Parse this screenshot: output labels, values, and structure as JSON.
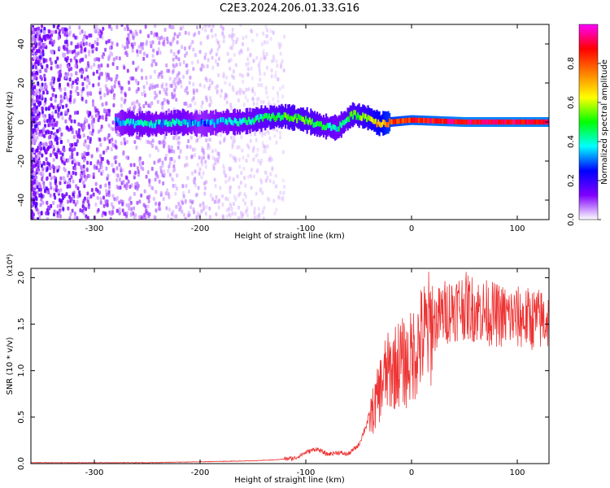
{
  "title": "C2E3.2024.206.01.33.G16",
  "chart_data": [
    {
      "type": "heatmap",
      "xlabel": "Height of straight line (km)",
      "ylabel": "Frequency (Hz)",
      "xlim": [
        -360,
        130
      ],
      "ylim": [
        -50,
        50
      ],
      "x_ticks": [
        -300,
        -200,
        -100,
        0,
        100
      ],
      "y_ticks": [
        -40,
        -20,
        0,
        20,
        40
      ],
      "colorbar": {
        "label": "Normalized spectral amplitude",
        "range": [
          0,
          1
        ],
        "ticks": [
          "0.0",
          "0.2",
          "0.4",
          "0.6",
          "0.8"
        ],
        "colors": [
          "#ffffff",
          "#8000ff",
          "#0000ff",
          "#00ffff",
          "#00ff00",
          "#ffff00",
          "#ff8000",
          "#ff0000",
          "#ff00ff"
        ]
      },
      "signal_track": {
        "x": [
          -280,
          -260,
          -240,
          -220,
          -200,
          -180,
          -160,
          -140,
          -120,
          -100,
          -85,
          -70,
          -55,
          -40,
          -30,
          -20,
          0,
          50,
          100,
          130
        ],
        "freq": [
          0,
          -1,
          -1,
          0,
          -1,
          0,
          0,
          2,
          3,
          1,
          -2,
          -3,
          4,
          2,
          -1,
          0,
          1,
          0,
          0,
          0
        ],
        "amplitude": [
          0.3,
          0.4,
          0.35,
          0.4,
          0.3,
          0.35,
          0.4,
          0.45,
          0.5,
          0.5,
          0.45,
          0.4,
          0.5,
          0.6,
          0.7,
          0.8,
          0.85,
          0.9,
          0.9,
          0.9
        ]
      }
    },
    {
      "type": "line",
      "xlabel": "Height of straight line (km)",
      "ylabel": "SNR (10 * v/v)",
      "y_multiplier": "(x10⁴)",
      "xlim": [
        -360,
        130
      ],
      "ylim": [
        0,
        2.1
      ],
      "x_ticks": [
        -300,
        -200,
        -100,
        0,
        100
      ],
      "y_ticks": [
        "0.0",
        "0.5",
        "1.0",
        "1.5",
        "2.0"
      ],
      "series": [
        {
          "color": "#ee3333",
          "x": [
            -360,
            -300,
            -250,
            -200,
            -150,
            -130,
            -110,
            -100,
            -90,
            -80,
            -70,
            -60,
            -50,
            -45,
            -40,
            -35,
            -30,
            -25,
            -20,
            -15,
            -10,
            -5,
            0,
            5,
            10,
            20,
            30,
            40,
            50,
            60,
            70,
            80,
            90,
            100,
            110,
            120,
            130
          ],
          "y": [
            0.01,
            0.01,
            0.01,
            0.02,
            0.03,
            0.04,
            0.06,
            0.12,
            0.16,
            0.1,
            0.12,
            0.1,
            0.2,
            0.35,
            0.5,
            0.6,
            0.8,
            0.95,
            1.0,
            1.05,
            1.1,
            1.05,
            1.15,
            1.25,
            1.35,
            1.5,
            1.62,
            1.68,
            1.7,
            1.66,
            1.63,
            1.6,
            1.58,
            1.57,
            1.56,
            1.55,
            1.55
          ]
        }
      ]
    }
  ]
}
